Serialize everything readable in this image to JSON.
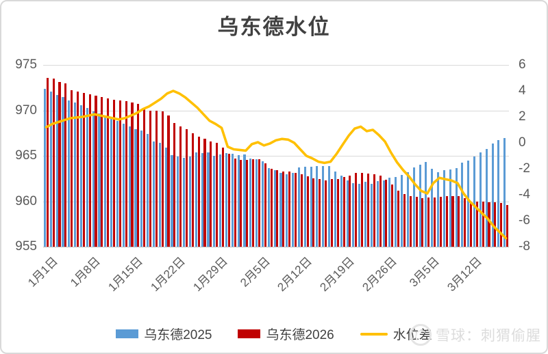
{
  "title": "乌东德水位",
  "watermark": {
    "text": "雪球：刺猬偷腥"
  },
  "legend": [
    {
      "label": "乌东德2025",
      "color": "#5B9BD5",
      "type": "bar"
    },
    {
      "label": "乌东德2026",
      "color": "#C00000",
      "type": "bar"
    },
    {
      "label": "水位差",
      "color": "#FFC000",
      "type": "line"
    }
  ],
  "colors": {
    "bar_2025": "#5B9BD5",
    "bar_2026": "#C00000",
    "diff_line": "#FFC000",
    "gridline": "#D9D9D9",
    "axis_text": "#595959"
  },
  "chart_data": {
    "type": "bar",
    "subtype": "grouped-bars-with-line",
    "title": "乌东德水位",
    "n_points": 77,
    "x_tick_labels": [
      "1月1日",
      "1月8日",
      "1月15日",
      "1月22日",
      "1月29日",
      "2月5日",
      "2月12日",
      "2月19日",
      "2月26日",
      "3月5日",
      "3月12日"
    ],
    "tick_every": 7,
    "left_axis": {
      "min": 955,
      "max": 975,
      "ticks": [
        975,
        970,
        965,
        960,
        955
      ]
    },
    "right_axis": {
      "min": -8,
      "max": 6,
      "ticks": [
        6,
        4,
        2,
        0,
        -2,
        -4,
        -6,
        -8
      ]
    },
    "grid": true,
    "legend_position": "bottom",
    "series": [
      {
        "name": "乌东德2025",
        "type": "bar",
        "axis": "left",
        "color": "#5B9BD5",
        "values": [
          972.4,
          972.05,
          971.7,
          971.45,
          971.1,
          970.85,
          970.6,
          970.3,
          969.9,
          969.65,
          969.4,
          969.15,
          968.85,
          968.5,
          968.2,
          967.95,
          967.8,
          967.4,
          966.6,
          966.4,
          965.9,
          965.1,
          964.9,
          964.8,
          964.9,
          965.4,
          965.3,
          965.35,
          965.0,
          965.15,
          965.3,
          965.2,
          965.1,
          965.15,
          964.7,
          964.6,
          964.4,
          963.65,
          963.4,
          963.15,
          963.0,
          963.1,
          963.7,
          963.8,
          963.8,
          963.9,
          963.85,
          963.9,
          963.3,
          962.8,
          962.3,
          962.0,
          961.9,
          962.15,
          961.95,
          962.2,
          962.3,
          962.6,
          962.7,
          962.9,
          963.2,
          963.7,
          964.05,
          964.3,
          963.55,
          963.2,
          963.4,
          963.5,
          963.65,
          964.25,
          964.5,
          964.9,
          965.35,
          965.75,
          966.35,
          966.7,
          966.95
        ]
      },
      {
        "name": "乌东德2026",
        "type": "bar",
        "axis": "left",
        "color": "#C00000",
        "values": [
          973.6,
          973.5,
          973.15,
          972.95,
          972.25,
          972.1,
          971.9,
          971.75,
          971.6,
          971.45,
          971.3,
          971.2,
          971.1,
          971.0,
          970.85,
          970.7,
          970.3,
          970.0,
          970.0,
          969.9,
          969.4,
          968.6,
          968.2,
          967.9,
          967.5,
          967.1,
          966.85,
          966.55,
          966.4,
          965.9,
          965.2,
          964.7,
          964.55,
          964.55,
          964.6,
          964.65,
          964.2,
          963.6,
          963.45,
          963.3,
          963.25,
          963.1,
          963.0,
          962.75,
          962.5,
          962.45,
          962.3,
          962.45,
          962.45,
          962.65,
          962.85,
          963.1,
          963.15,
          963.05,
          962.95,
          962.8,
          962.4,
          961.85,
          961.2,
          960.8,
          960.6,
          960.5,
          960.35,
          960.4,
          960.45,
          960.5,
          960.6,
          960.6,
          960.55,
          960.35,
          960.0,
          959.95,
          959.95,
          959.9,
          959.9,
          959.8,
          959.6
        ]
      },
      {
        "name": "水位差",
        "type": "line",
        "axis": "right",
        "color": "#FFC000",
        "values": [
          1.2,
          1.45,
          1.6,
          1.75,
          1.9,
          1.95,
          2.0,
          2.1,
          2.2,
          2.1,
          2.0,
          1.9,
          1.8,
          1.9,
          2.1,
          2.3,
          2.6,
          2.8,
          3.1,
          3.4,
          3.8,
          4.0,
          3.8,
          3.5,
          3.1,
          2.7,
          2.2,
          1.7,
          1.45,
          1.15,
          -0.3,
          -0.5,
          -0.55,
          -0.6,
          -0.1,
          0.05,
          -0.2,
          -0.05,
          0.2,
          0.3,
          0.25,
          0.0,
          -0.5,
          -1.0,
          -1.2,
          -1.45,
          -1.55,
          -1.45,
          -0.85,
          -0.15,
          0.55,
          1.1,
          1.25,
          0.9,
          1.0,
          0.6,
          0.1,
          -0.75,
          -1.5,
          -2.1,
          -2.6,
          -3.2,
          -3.7,
          -3.9,
          -3.1,
          -2.7,
          -2.8,
          -2.9,
          -3.1,
          -3.9,
          -4.5,
          -4.95,
          -5.4,
          -5.85,
          -6.45,
          -6.9,
          -7.35
        ]
      }
    ]
  }
}
